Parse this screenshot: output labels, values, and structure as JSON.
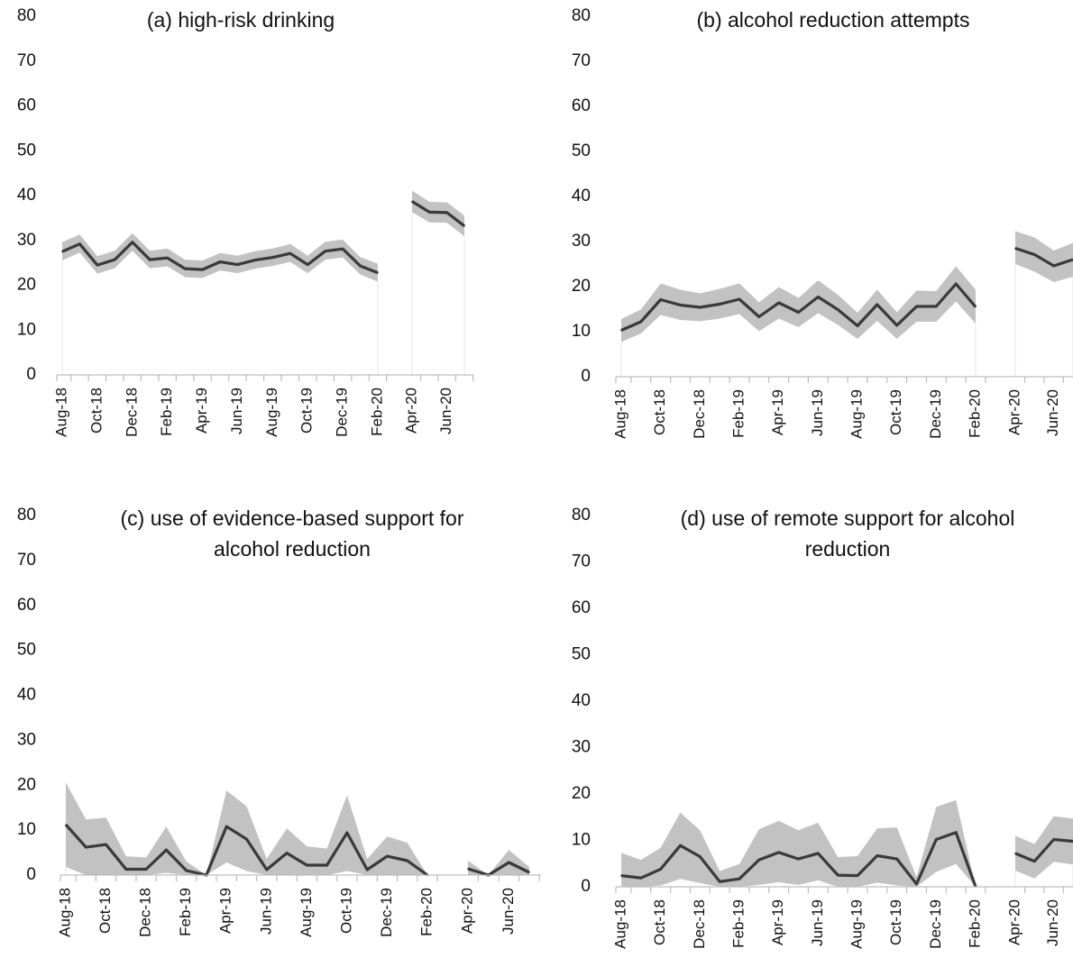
{
  "chart_data": [
    {
      "type": "line",
      "title": "(a) high-risk drinking",
      "ylim": [
        0,
        80
      ],
      "yticks": [
        "0",
        "10",
        "20",
        "30",
        "40",
        "50",
        "60",
        "70",
        "80"
      ],
      "x": [
        "Aug-18",
        "Sep-18",
        "Oct-18",
        "Nov-18",
        "Dec-18",
        "Jan-19",
        "Feb-19",
        "Mar-19",
        "Apr-19",
        "May-19",
        "Jun-19",
        "Jul-19",
        "Aug-19",
        "Sep-19",
        "Oct-19",
        "Nov-19",
        "Dec-19",
        "Jan-20",
        "Feb-20",
        "Mar-20",
        "Apr-20",
        "May-20",
        "Jun-20",
        "Jul-20"
      ],
      "x_tick_labels": [
        "Aug-18",
        "Oct-18",
        "Dec-18",
        "Feb-19",
        "Apr-19",
        "Jun-19",
        "Aug-19",
        "Oct-19",
        "Dec-19",
        "Feb-20",
        "Apr-20",
        "Jun-20"
      ],
      "series": [
        {
          "values": [
            27.5,
            29.2,
            24.5,
            25.7,
            29.6,
            25.7,
            26.1,
            23.7,
            23.5,
            25.2,
            24.6,
            25.6,
            26.2,
            27.1,
            24.6,
            27.6,
            28.1,
            24.3,
            22.8,
            null,
            38.7,
            36.3,
            36.2,
            33.2
          ],
          "lower": [
            25.5,
            27.3,
            22.6,
            23.8,
            27.7,
            23.8,
            24.2,
            21.8,
            21.6,
            23.3,
            22.7,
            23.7,
            24.3,
            25.2,
            22.7,
            25.7,
            26.2,
            22.4,
            20.8,
            null,
            36.3,
            34.0,
            33.9,
            30.9
          ],
          "upper": [
            29.6,
            31.3,
            26.5,
            27.7,
            31.6,
            27.7,
            28.2,
            25.7,
            25.5,
            27.2,
            26.6,
            27.6,
            28.2,
            29.2,
            26.6,
            29.7,
            30.2,
            26.3,
            24.8,
            null,
            41.1,
            38.6,
            38.5,
            35.5
          ]
        }
      ]
    },
    {
      "type": "line",
      "title": "(b) alcohol reduction attempts",
      "ylim": [
        0,
        80
      ],
      "yticks": [
        "0",
        "10",
        "20",
        "30",
        "40",
        "50",
        "60",
        "70",
        "80"
      ],
      "x": [
        "Aug-18",
        "Sep-18",
        "Oct-18",
        "Nov-18",
        "Dec-18",
        "Jan-19",
        "Feb-19",
        "Mar-19",
        "Apr-19",
        "May-19",
        "Jun-19",
        "Jul-19",
        "Aug-19",
        "Sep-19",
        "Oct-19",
        "Nov-19",
        "Dec-19",
        "Jan-20",
        "Feb-20",
        "Mar-20",
        "Apr-20",
        "May-20",
        "Jun-20",
        "Jul-20"
      ],
      "x_tick_labels": [
        "Aug-18",
        "Oct-18",
        "Dec-18",
        "Feb-19",
        "Apr-19",
        "Jun-19",
        "Aug-19",
        "Oct-19",
        "Dec-19",
        "Feb-20",
        "Apr-20",
        "Jun-20"
      ],
      "series": [
        {
          "values": [
            10.3,
            12.2,
            17.1,
            15.9,
            15.4,
            16.1,
            17.2,
            13.3,
            16.4,
            14.3,
            17.7,
            14.9,
            11.3,
            16.0,
            11.4,
            15.6,
            15.6,
            20.6,
            15.5,
            null,
            28.5,
            27.1,
            24.6,
            26.0
          ],
          "lower": [
            7.7,
            9.6,
            13.7,
            12.6,
            12.3,
            12.9,
            13.9,
            10.1,
            12.9,
            11.0,
            14.1,
            11.5,
            8.4,
            12.4,
            8.4,
            12.2,
            12.2,
            16.7,
            11.8,
            null,
            25.0,
            23.3,
            21.0,
            22.2
          ],
          "upper": [
            12.8,
            14.9,
            20.7,
            19.3,
            18.5,
            19.5,
            20.7,
            16.5,
            19.9,
            17.5,
            21.4,
            18.2,
            14.2,
            19.3,
            14.3,
            19.1,
            19.0,
            24.5,
            19.3,
            null,
            32.3,
            30.9,
            28.0,
            29.7
          ]
        }
      ]
    },
    {
      "type": "line",
      "title": "(c) use of evidence-based support for alcohol reduction",
      "ylim": [
        0,
        80
      ],
      "yticks": [
        "0",
        "10",
        "20",
        "30",
        "40",
        "50",
        "60",
        "70",
        "80"
      ],
      "x": [
        "Aug-18",
        "Sep-18",
        "Oct-18",
        "Nov-18",
        "Dec-18",
        "Jan-19",
        "Feb-19",
        "Mar-19",
        "Apr-19",
        "May-19",
        "Jun-19",
        "Jul-19",
        "Aug-19",
        "Sep-19",
        "Oct-19",
        "Nov-19",
        "Dec-19",
        "Jan-20",
        "Feb-20",
        "Mar-20",
        "Apr-20",
        "May-20",
        "Jun-20",
        "Jul-20"
      ],
      "x_tick_labels": [
        "Aug-18",
        "Oct-18",
        "Dec-18",
        "Feb-19",
        "Apr-19",
        "Jun-19",
        "Aug-19",
        "Oct-19",
        "Dec-19",
        "Feb-20",
        "Apr-20",
        "Jun-20"
      ],
      "series": [
        {
          "values": [
            11.2,
            6.2,
            6.8,
            1.3,
            1.3,
            5.6,
            1.0,
            0.0,
            10.8,
            8.0,
            1.2,
            4.9,
            2.2,
            2.2,
            9.4,
            1.2,
            4.2,
            3.2,
            0.0,
            null,
            1.4,
            0.0,
            2.8,
            0.6
          ],
          "lower": [
            1.8,
            0.0,
            0.0,
            0.0,
            0.0,
            0.5,
            0.0,
            0.0,
            2.8,
            0.9,
            0.0,
            0.0,
            0.0,
            0.0,
            0.9,
            0.0,
            0.0,
            0.0,
            0.0,
            null,
            0.0,
            0.0,
            0.0,
            0.0
          ],
          "upper": [
            20.6,
            12.4,
            12.8,
            4.2,
            3.9,
            10.8,
            3.0,
            0.0,
            18.8,
            15.3,
            3.6,
            10.4,
            6.4,
            5.9,
            17.8,
            3.6,
            8.6,
            7.2,
            0.0,
            null,
            3.2,
            0.0,
            5.6,
            1.8
          ]
        }
      ]
    },
    {
      "type": "line",
      "title": "(d) use of remote support for alcohol reduction",
      "ylim": [
        0,
        80
      ],
      "yticks": [
        "0",
        "10",
        "20",
        "30",
        "40",
        "50",
        "60",
        "70",
        "80"
      ],
      "x": [
        "Aug-18",
        "Sep-18",
        "Oct-18",
        "Nov-18",
        "Dec-18",
        "Jan-19",
        "Feb-19",
        "Mar-19",
        "Apr-19",
        "May-19",
        "Jun-19",
        "Jul-19",
        "Aug-19",
        "Sep-19",
        "Oct-19",
        "Nov-19",
        "Dec-19",
        "Jan-20",
        "Feb-20",
        "Mar-20",
        "Apr-20",
        "May-20",
        "Jun-20",
        "Jul-20"
      ],
      "x_tick_labels": [
        "Aug-18",
        "Oct-18",
        "Dec-18",
        "Feb-19",
        "Apr-19",
        "Jun-19",
        "Aug-19",
        "Oct-19",
        "Dec-19",
        "Feb-20",
        "Apr-20",
        "Jun-20"
      ],
      "series": [
        {
          "values": [
            2.4,
            1.9,
            3.8,
            8.9,
            6.5,
            1.1,
            1.7,
            5.8,
            7.4,
            6.0,
            7.2,
            2.5,
            2.4,
            6.7,
            6.0,
            0.6,
            10.2,
            11.7,
            0.0,
            null,
            7.2,
            5.5,
            10.2,
            9.8
          ],
          "lower": [
            0.0,
            0.0,
            0.3,
            1.7,
            0.8,
            0.0,
            0.0,
            0.4,
            1.0,
            0.4,
            1.4,
            0.0,
            0.0,
            0.9,
            0.3,
            0.0,
            3.2,
            4.9,
            0.0,
            null,
            3.5,
            1.8,
            5.4,
            4.8
          ],
          "upper": [
            7.3,
            5.8,
            8.4,
            16.0,
            12.2,
            3.4,
            4.9,
            12.4,
            14.2,
            12.2,
            13.8,
            6.4,
            6.6,
            12.6,
            12.8,
            2.1,
            17.2,
            18.7,
            0.0,
            null,
            11.0,
            9.2,
            15.2,
            14.7
          ]
        }
      ]
    }
  ]
}
